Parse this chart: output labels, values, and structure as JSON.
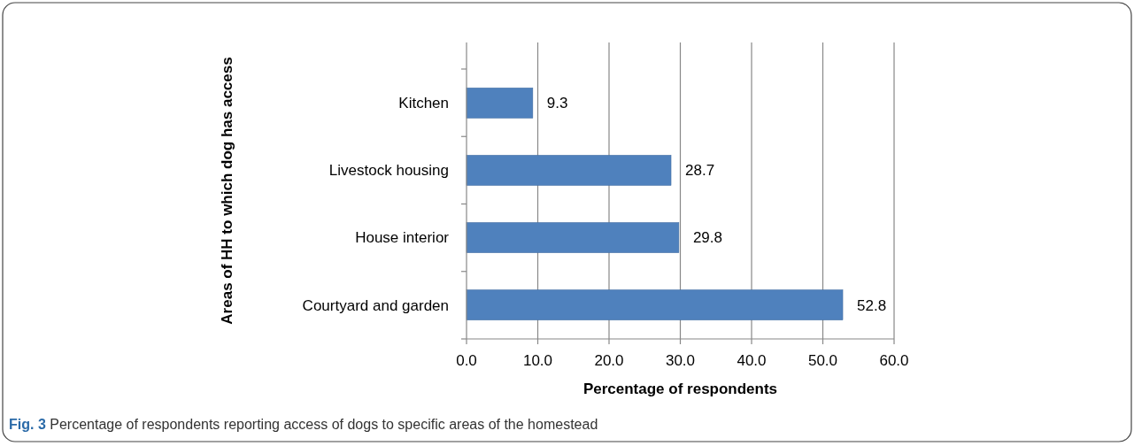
{
  "chart_data": {
    "type": "bar",
    "orientation": "horizontal",
    "xlabel": "Percentage of respondents",
    "ylabel": "Areas of HH to which dog has access",
    "categories": [
      "Kitchen",
      "Livestock housing",
      "House interior",
      "Courtyard and garden"
    ],
    "values": [
      9.3,
      28.7,
      29.8,
      52.8
    ],
    "color": "#4f81bd",
    "xlim": [
      0,
      60
    ],
    "xticks": [
      {
        "value": 0,
        "label": "0.0"
      },
      {
        "value": 10,
        "label": "10.0"
      },
      {
        "value": 20,
        "label": "20.0"
      },
      {
        "value": 30,
        "label": "30.0"
      },
      {
        "value": 40,
        "label": "40.0"
      },
      {
        "value": 50,
        "label": "50.0"
      },
      {
        "value": 60,
        "label": "60.0"
      }
    ],
    "grid": "x",
    "data_labels": true,
    "annotations": [
      "Fig. 3 Percentage of respondents reporting access of dogs to specific areas of the homestead"
    ]
  }
}
